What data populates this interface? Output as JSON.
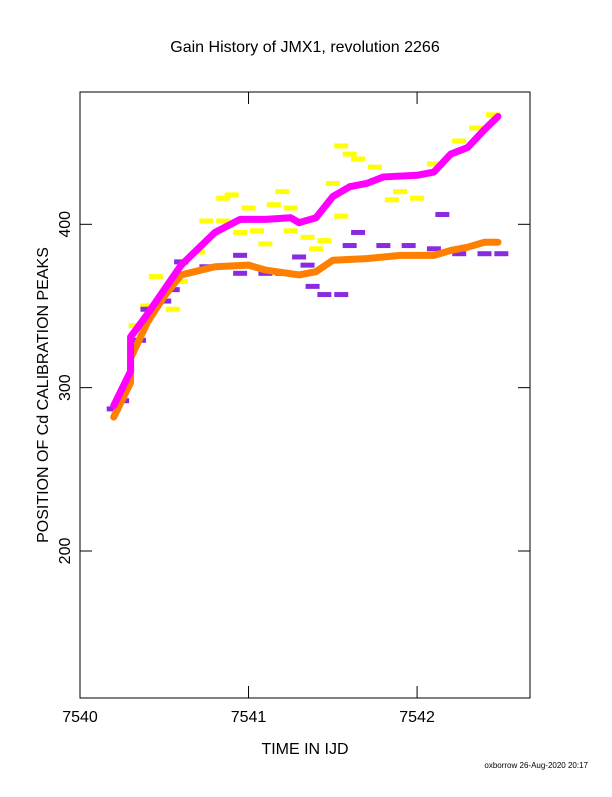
{
  "chart_data": {
    "type": "line",
    "title": "Gain History of JMX1, revolution 2266",
    "xlabel": "TIME IN IJD",
    "ylabel": "POSITION OF Cd CALIBRATION PEAKS",
    "footer": "oxborrow 26-Aug-2020 20:17",
    "xlim": [
      7540,
      7542.67
    ],
    "ylim": [
      110,
      481
    ],
    "xticks": [
      7540,
      7541,
      7542
    ],
    "yticks": [
      200,
      300,
      400
    ],
    "series": [
      {
        "color": "#ffff00",
        "style": "points",
        "x": [
          7540.33,
          7540.4,
          7540.45,
          7540.55,
          7540.6,
          7540.7,
          7540.75,
          7540.85,
          7540.9,
          7540.85,
          7540.95,
          7541.05,
          7541.0,
          7541.1,
          7541.15,
          7541.2,
          7541.25,
          7541.35,
          7541.4,
          7541.45,
          7541.5,
          7541.55,
          7541.6,
          7541.65,
          7541.75,
          7541.85,
          7541.9,
          7542.0,
          7542.1,
          7542.25,
          7542.35,
          7542.45,
          7541.55,
          7541.25
        ],
        "values": [
          338,
          350,
          368,
          348,
          365,
          383,
          402,
          416,
          418,
          402,
          395,
          396,
          410,
          388,
          412,
          420,
          410,
          392,
          385,
          390,
          425,
          405,
          443,
          440,
          435,
          415,
          420,
          416,
          437,
          451,
          459,
          467,
          448,
          396
        ]
      },
      {
        "color": "#8a2be2",
        "style": "points",
        "x": [
          7540.2,
          7540.25,
          7540.35,
          7540.4,
          7540.5,
          7540.55,
          7540.6,
          7540.75,
          7540.95,
          7541.1,
          7541.2,
          7541.3,
          7541.35,
          7541.38,
          7541.45,
          7541.55,
          7541.6,
          7541.8,
          7541.95,
          7542.1,
          7542.15,
          7542.25,
          7542.4,
          7542.5,
          7541.65,
          7540.95
        ],
        "values": [
          287,
          292,
          329,
          348,
          353,
          360,
          377,
          374,
          381,
          370,
          370,
          380,
          375,
          362,
          357,
          357,
          387,
          387,
          387,
          385,
          406,
          382,
          382,
          382,
          395,
          370
        ]
      },
      {
        "color": "#ff7f00",
        "style": "line",
        "x": [
          7540.2,
          7540.3,
          7540.3,
          7540.4,
          7540.5,
          7540.6,
          7540.8,
          7541.0,
          7541.1,
          7541.3,
          7541.4,
          7541.5,
          7541.7,
          7541.9,
          7542.1,
          7542.2,
          7542.3,
          7542.4,
          7542.48
        ],
        "values": [
          282,
          303,
          318,
          340,
          356,
          369,
          374,
          375,
          372,
          369,
          371,
          378,
          379,
          381,
          381,
          384,
          386,
          389,
          389
        ]
      },
      {
        "color": "#ff00ff",
        "style": "line",
        "x": [
          7540.2,
          7540.3,
          7540.3,
          7540.4,
          7540.5,
          7540.6,
          7540.8,
          7540.95,
          7541.1,
          7541.25,
          7541.3,
          7541.4,
          7541.5,
          7541.6,
          7541.7,
          7541.8,
          7542.0,
          7542.1,
          7542.2,
          7542.3,
          7542.4,
          7542.48
        ],
        "values": [
          289,
          310,
          331,
          345,
          360,
          375,
          395,
          403,
          403,
          404,
          401,
          404,
          417,
          423,
          425,
          429,
          430,
          432,
          443,
          447,
          458,
          466
        ]
      }
    ]
  }
}
